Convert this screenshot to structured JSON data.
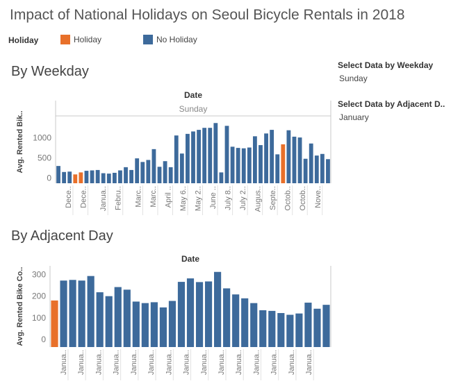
{
  "page": {
    "title": "Impact of National Holidays on Seoul Bicycle Rentals in 2018"
  },
  "legend": {
    "title": "Holiday",
    "items": [
      {
        "label": "Holiday",
        "color": "#E8702A"
      },
      {
        "label": "No Holiday",
        "color": "#3D6A9B"
      }
    ]
  },
  "filters": {
    "weekday": {
      "label": "Select Data by Weekday",
      "value": "Sunday"
    },
    "adjacent": {
      "label": "Select Data by Adjacent D..",
      "value": "January"
    }
  },
  "colors": {
    "holiday": "#E8702A",
    "no_holiday": "#3D6A9B",
    "axis": "#c8c8c8",
    "tick_text": "#777777"
  },
  "weekday_chart": {
    "section_title": "By Weekday",
    "header": "Date",
    "subheader": "Sunday",
    "chart_data": {
      "type": "bar",
      "ylabel": "Avg. Rented Bik..",
      "yticks": [
        0,
        500,
        1000
      ],
      "ylim": [
        -130,
        1530
      ],
      "values": [
        300,
        150,
        160,
        90,
        140,
        180,
        190,
        200,
        120,
        110,
        130,
        190,
        270,
        200,
        490,
        400,
        450,
        720,
        280,
        420,
        270,
        1060,
        610,
        1100,
        1160,
        1200,
        1250,
        1250,
        1370,
        140,
        1300,
        780,
        750,
        740,
        760,
        1040,
        820,
        1110,
        1200,
        590,
        840,
        1190,
        1030,
        1010,
        480,
        860,
        560,
        600,
        470
      ],
      "holiday": [
        false,
        false,
        false,
        true,
        true,
        false,
        false,
        false,
        false,
        false,
        false,
        false,
        false,
        false,
        false,
        false,
        false,
        false,
        false,
        false,
        false,
        false,
        false,
        false,
        false,
        false,
        false,
        false,
        false,
        false,
        false,
        false,
        false,
        false,
        false,
        false,
        false,
        false,
        false,
        false,
        true,
        false,
        false,
        false,
        false,
        false,
        false,
        false,
        false
      ],
      "xtick_labels": [
        {
          "label": "Dece..",
          "index": 2
        },
        {
          "label": "Dece..",
          "index": 5
        },
        {
          "label": "Janua..",
          "index": 9
        },
        {
          "label": "Febru..",
          "index": 12
        },
        {
          "label": "Marc..",
          "index": 16
        },
        {
          "label": "Marc..",
          "index": 19
        },
        {
          "label": "April ..",
          "index": 22
        },
        {
          "label": "May 6..",
          "index": 25
        },
        {
          "label": "May 2..",
          "index": 28
        },
        {
          "label": "June ..",
          "index": 31
        },
        {
          "label": "July 8..",
          "index": 34
        },
        {
          "label": "July 2..",
          "index": 37
        },
        {
          "label": "Augus..",
          "index": 40
        },
        {
          "label": "Septe..",
          "index": 43
        },
        {
          "label": "Octob..",
          "index": 46
        },
        {
          "label": "Octob..",
          "index": 49
        },
        {
          "label": "Nove..",
          "index": 52
        }
      ]
    }
  },
  "adjacent_chart": {
    "section_title": "By Adjacent Day",
    "header": "Date",
    "chart_data": {
      "type": "bar",
      "ylabel": "Avg. Rented Bike Co..",
      "yticks": [
        0,
        100,
        200,
        300
      ],
      "ylim": [
        -35,
        340
      ],
      "values": [
        180,
        272,
        275,
        272,
        293,
        218,
        200,
        242,
        230,
        175,
        168,
        172,
        148,
        178,
        266,
        282,
        265,
        268,
        312,
        236,
        208,
        190,
        168,
        135,
        132,
        122,
        114,
        120,
        170,
        142,
        160
      ],
      "holiday": [
        true,
        false,
        false,
        false,
        false,
        false,
        false,
        false,
        false,
        false,
        false,
        false,
        false,
        false,
        false,
        false,
        false,
        false,
        false,
        false,
        false,
        false,
        false,
        false,
        false,
        false,
        false,
        false,
        false,
        false,
        false
      ],
      "xtick_labels": [
        {
          "label": "Janua..",
          "index": 1
        },
        {
          "label": "Janua..",
          "index": 3
        },
        {
          "label": "Janua..",
          "index": 5
        },
        {
          "label": "Janua..",
          "index": 7
        },
        {
          "label": "Janua..",
          "index": 9
        },
        {
          "label": "Janua..",
          "index": 11
        },
        {
          "label": "Janua..",
          "index": 13
        },
        {
          "label": "Janua..",
          "index": 15
        },
        {
          "label": "Janua..",
          "index": 17
        },
        {
          "label": "Janua..",
          "index": 19
        },
        {
          "label": "Janua..",
          "index": 21
        },
        {
          "label": "Janua..",
          "index": 23
        },
        {
          "label": "Janua..",
          "index": 25
        },
        {
          "label": "Janua..",
          "index": 27
        },
        {
          "label": "Janua..",
          "index": 29
        }
      ]
    }
  }
}
